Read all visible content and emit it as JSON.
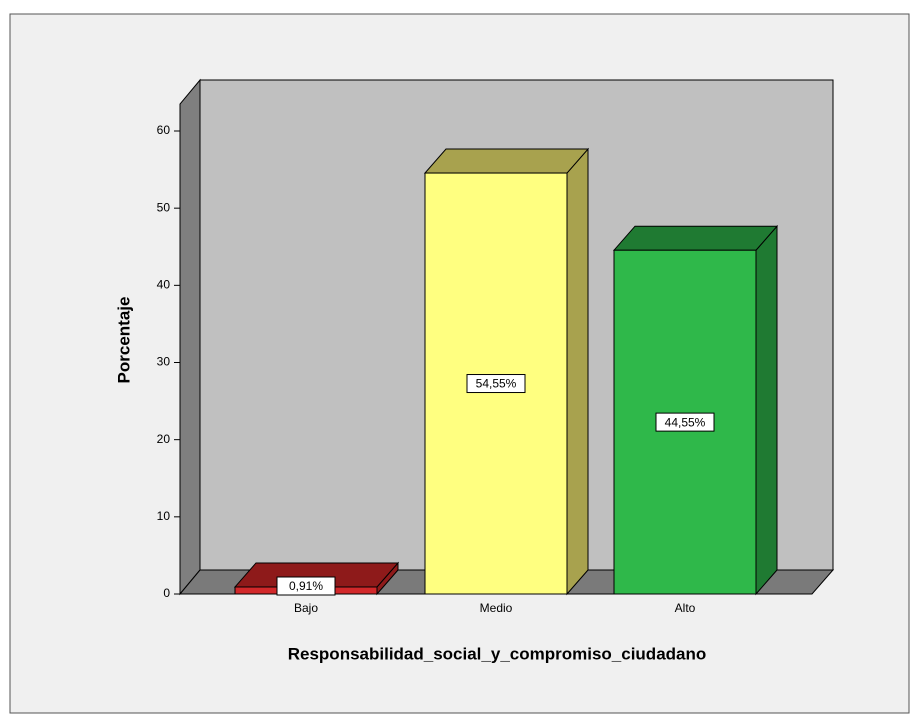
{
  "chart_data": {
    "type": "bar3d",
    "categories": [
      "Bajo",
      "Medio",
      "Alto"
    ],
    "values": [
      0.91,
      54.55,
      44.55
    ],
    "value_labels": [
      "0,91%",
      "54,55%",
      "44,55%"
    ],
    "colors": [
      "#d2282a",
      "#ffff80",
      "#2fb84a"
    ],
    "side_colors": [
      "#8e1a1a",
      "#a8a24e",
      "#1f7a32"
    ],
    "xlabel": "Responsabilidad_social_y_compromiso_ciudadano",
    "ylabel": "Porcentaje",
    "ylim": [
      0,
      60
    ],
    "yticks": [
      0,
      10,
      20,
      30,
      40,
      50,
      60
    ]
  }
}
